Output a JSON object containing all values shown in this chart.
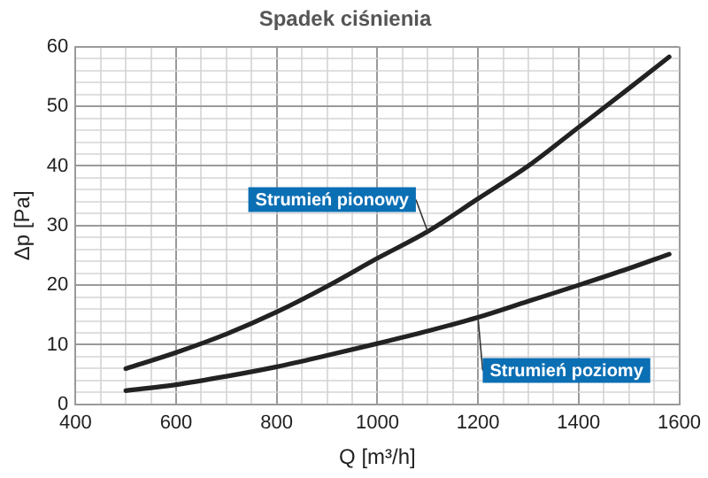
{
  "chart_data": {
    "type": "line",
    "title": "Spadek ciśnienia",
    "xlabel": "Q [m³/h]",
    "ylabel": "Δp [Pa]",
    "x": [
      500,
      600,
      700,
      800,
      900,
      1000,
      1100,
      1200,
      1300,
      1400,
      1500,
      1580
    ],
    "series": [
      {
        "name": "Strumień pionowy",
        "color": "#222222",
        "values": [
          6,
          8.7,
          11.8,
          15.5,
          19.8,
          24.5,
          29,
          34.5,
          40,
          46.5,
          53,
          58.3
        ]
      },
      {
        "name": "Strumień poziomy",
        "color": "#222222",
        "values": [
          2.3,
          3.3,
          4.7,
          6.3,
          8.2,
          10.2,
          12.3,
          14.6,
          17.3,
          20,
          22.8,
          25.2
        ]
      }
    ],
    "xlim": [
      400,
      1600
    ],
    "xticks": [
      400,
      {
        "value": 450,
        "label": null
      },
      {
        "value": 500,
        "label": null
      },
      {
        "value": 550,
        "label": null
      },
      600,
      {
        "value": 650,
        "label": null
      },
      {
        "value": 700,
        "label": null
      },
      {
        "value": 750,
        "label": null
      },
      800,
      {
        "value": 850,
        "label": null
      },
      {
        "value": 900,
        "label": null
      },
      {
        "value": 950,
        "label": null
      },
      1000,
      {
        "value": 1050,
        "label": null
      },
      {
        "value": 1100,
        "label": null
      },
      {
        "value": 1150,
        "label": null
      },
      1200,
      {
        "value": 1250,
        "label": null
      },
      {
        "value": 1300,
        "label": null
      },
      {
        "value": 1350,
        "label": null
      },
      1400,
      {
        "value": 1450,
        "label": null
      },
      {
        "value": 1500,
        "label": null
      },
      {
        "value": 1550,
        "label": null
      },
      1600
    ],
    "ylim": [
      0,
      60
    ],
    "yticks": [
      0,
      {
        "value": 2,
        "label": null
      },
      {
        "value": 4,
        "label": null
      },
      {
        "value": 6,
        "label": null
      },
      {
        "value": 8,
        "label": null
      },
      10,
      {
        "value": 12,
        "label": null
      },
      {
        "value": 14,
        "label": null
      },
      {
        "value": 16,
        "label": null
      },
      {
        "value": 18,
        "label": null
      },
      20,
      {
        "value": 22,
        "label": null
      },
      {
        "value": 24,
        "label": null
      },
      {
        "value": 26,
        "label": null
      },
      {
        "value": 28,
        "label": null
      },
      30,
      {
        "value": 32,
        "label": null
      },
      {
        "value": 34,
        "label": null
      },
      {
        "value": 36,
        "label": null
      },
      {
        "value": 38,
        "label": null
      },
      40,
      {
        "value": 42,
        "label": null
      },
      {
        "value": 44,
        "label": null
      },
      {
        "value": 46,
        "label": null
      },
      {
        "value": 48,
        "label": null
      },
      50,
      {
        "value": 52,
        "label": null
      },
      {
        "value": 54,
        "label": null
      },
      {
        "value": 56,
        "label": null
      },
      {
        "value": 58,
        "label": null
      },
      60
    ],
    "grid": true,
    "legend": false,
    "marker": "none",
    "line_style": "solid"
  }
}
